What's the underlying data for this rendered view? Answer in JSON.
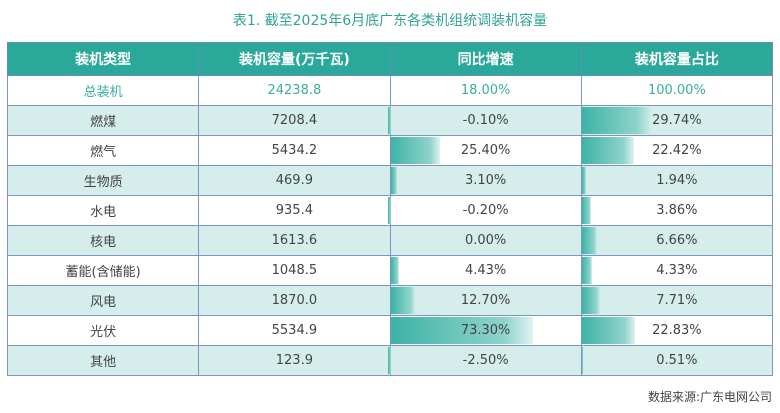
{
  "title": "表1. 截至2025年6月底广东各类机组统调装机容量",
  "headers": [
    "装机类型",
    "装机容量(万千瓦)",
    "同比增速",
    "装机容量占比"
  ],
  "total": {
    "type": "总装机",
    "capacity": "24238.8",
    "growth": "18.00%",
    "share": "100.00%"
  },
  "rows": [
    {
      "type": "燃煤",
      "capacity": "7208.4",
      "growth": "-0.10%",
      "share": "29.74%",
      "growth_value": -0.1,
      "share_value": 29.74
    },
    {
      "type": "燃气",
      "capacity": "5434.2",
      "growth": "25.40%",
      "share": "22.42%",
      "growth_value": 25.4,
      "share_value": 22.42
    },
    {
      "type": "生物质",
      "capacity": "469.9",
      "growth": "3.10%",
      "share": "1.94%",
      "growth_value": 3.1,
      "share_value": 1.94
    },
    {
      "type": "水电",
      "capacity": "935.4",
      "growth": "-0.20%",
      "share": "3.86%",
      "growth_value": -0.2,
      "share_value": 3.86
    },
    {
      "type": "核电",
      "capacity": "1613.6",
      "growth": "0.00%",
      "share": "6.66%",
      "growth_value": 0.0,
      "share_value": 6.66
    },
    {
      "type": "蓄能(含储能)",
      "capacity": "1048.5",
      "growth": "4.43%",
      "share": "4.33%",
      "growth_value": 4.43,
      "share_value": 4.33
    },
    {
      "type": "风电",
      "capacity": "1870.0",
      "growth": "12.70%",
      "share": "7.71%",
      "growth_value": 12.7,
      "share_value": 7.71
    },
    {
      "type": "光伏",
      "capacity": "5534.9",
      "growth": "73.30%",
      "share": "22.83%",
      "growth_value": 73.3,
      "share_value": 22.83
    },
    {
      "type": "其他",
      "capacity": "123.9",
      "growth": "-2.50%",
      "share": "0.51%",
      "growth_value": -2.5,
      "share_value": 0.51
    }
  ],
  "source": "数据来源:广东电网公司",
  "colors": {
    "header": "#2aa89a",
    "accent": "#3aaea0",
    "row_light": "#d5eeec"
  }
}
